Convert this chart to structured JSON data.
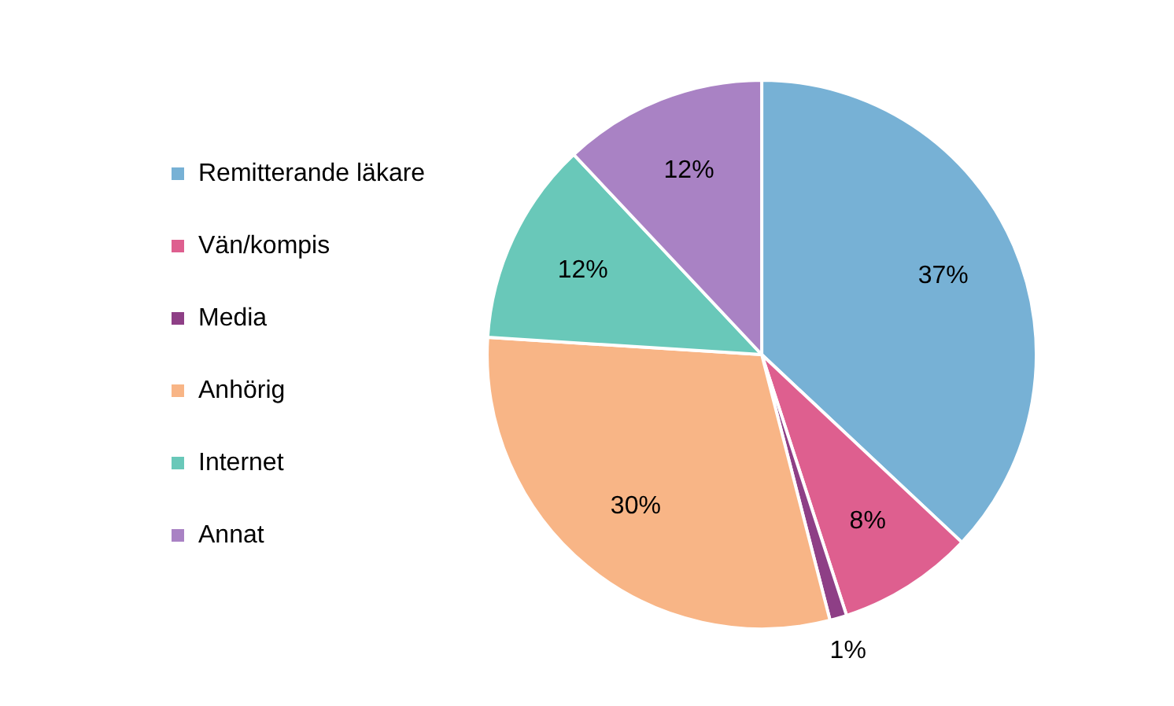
{
  "chart_data": {
    "type": "pie",
    "categories": [
      "Remitterande läkare",
      "Vän/kompis",
      "Media",
      "Anhörig",
      "Internet",
      "Annat"
    ],
    "values": [
      37,
      8,
      1,
      30,
      12,
      12
    ],
    "colors": [
      "#77b1d5",
      "#de5f8f",
      "#8e3f86",
      "#f8b586",
      "#69c8b9",
      "#a982c4"
    ],
    "value_labels": [
      "37%",
      "8%",
      "1%",
      "30%",
      "12%",
      "12%"
    ],
    "legend": "left"
  }
}
